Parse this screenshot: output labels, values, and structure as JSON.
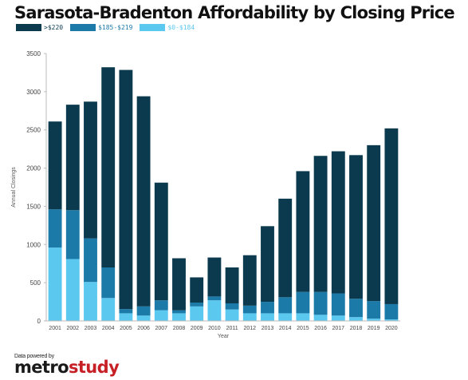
{
  "chart_data": {
    "type": "bar",
    "stacked": true,
    "title": "Sarasota-Bradenton Affordability by Closing Price",
    "xlabel": "Year",
    "ylabel": "Annual Closings",
    "ylim": [
      0,
      3500
    ],
    "yticks": [
      0,
      500,
      1000,
      1500,
      2000,
      2500,
      3000,
      3500
    ],
    "grid": false,
    "legend_position": "top-left",
    "categories": [
      "2001",
      "2002",
      "2003",
      "2004",
      "2005",
      "2006",
      "2007",
      "2008",
      "2009",
      "2010",
      "2011",
      "2012",
      "2013",
      "2014",
      "2015",
      "2016",
      "2017",
      "2018",
      "2019",
      "2020"
    ],
    "series": [
      {
        "name": "$0-$184",
        "color": "#5bc8f0",
        "values": [
          960,
          810,
          510,
          300,
          100,
          70,
          140,
          100,
          190,
          270,
          150,
          100,
          100,
          100,
          100,
          80,
          70,
          50,
          30,
          20
        ]
      },
      {
        "name": "$185-$219",
        "color": "#1b7aa8",
        "values": [
          500,
          640,
          570,
          400,
          55,
          120,
          130,
          40,
          50,
          50,
          80,
          100,
          150,
          210,
          280,
          300,
          290,
          240,
          230,
          200
        ]
      },
      {
        "name": ">$220",
        "color": "#0b3a4f",
        "values": [
          1150,
          1380,
          1790,
          2620,
          3130,
          2750,
          1540,
          680,
          330,
          510,
          470,
          660,
          990,
          1290,
          1580,
          1780,
          1860,
          1880,
          2040,
          2300
        ]
      }
    ]
  },
  "legend": {
    "items": [
      {
        "label": ">$220",
        "color": "#0b3a4f"
      },
      {
        "label": "$185-$219",
        "color": "#1b7aa8"
      },
      {
        "label": "$0-$184",
        "color": "#5bc8f0"
      }
    ]
  },
  "footer": {
    "powered_by": "Data powered by",
    "brand_part1": "metro",
    "brand_part2": "study"
  }
}
